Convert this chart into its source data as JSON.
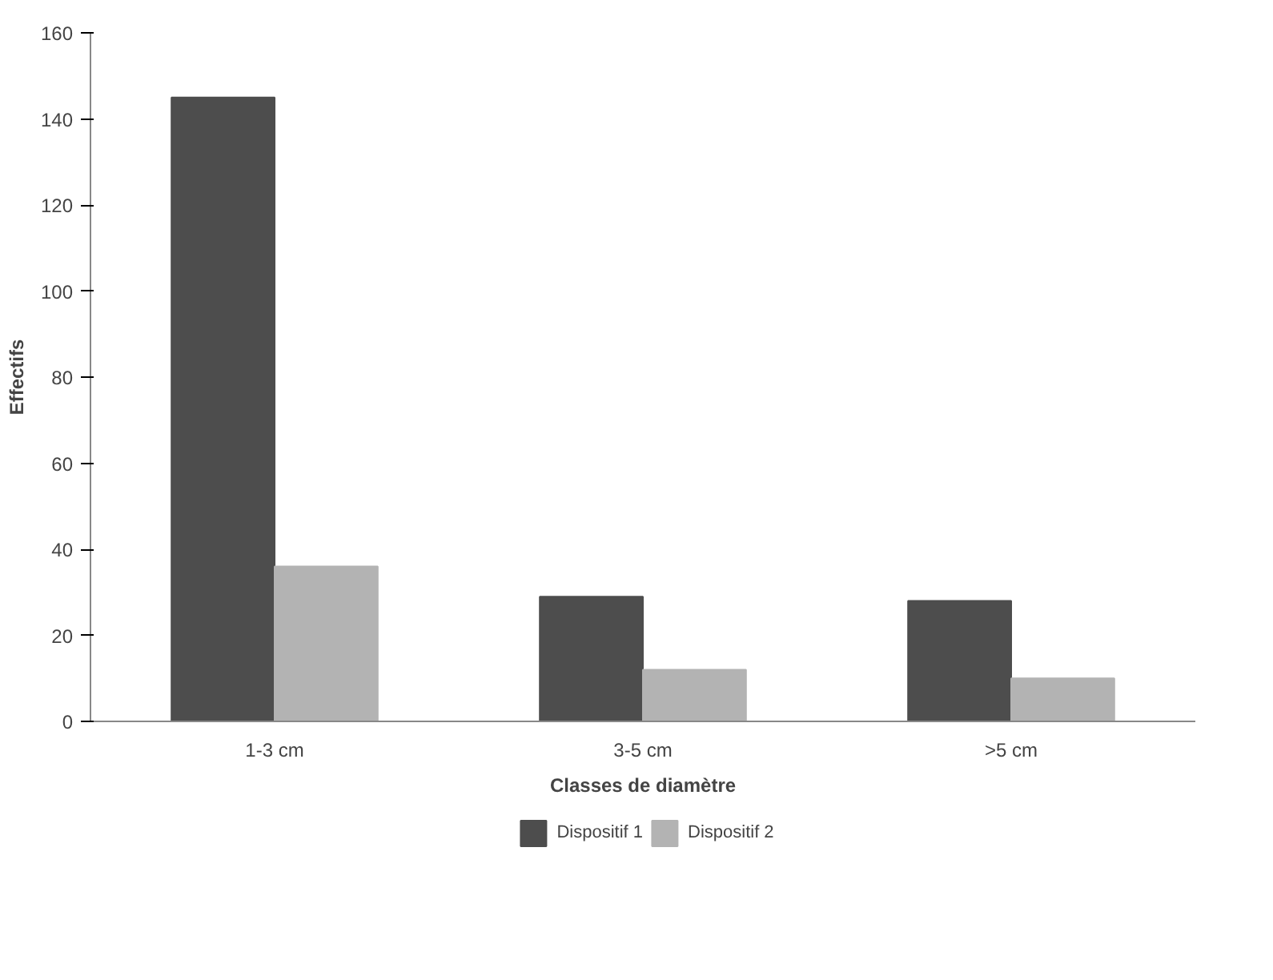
{
  "chart_data": {
    "type": "bar",
    "xlabel": "Classes de diamètre",
    "ylabel": "Effectifs",
    "categories": [
      "1-3 cm",
      "3-5 cm",
      ">5 cm"
    ],
    "series": [
      {
        "name": "Dispositif 1",
        "color": "#4d4d4d",
        "values": [
          145,
          29,
          28
        ]
      },
      {
        "name": "Dispositif 2",
        "color": "#b3b3b3",
        "values": [
          36,
          12,
          10
        ]
      }
    ],
    "ylim": [
      0,
      160
    ],
    "yticks": [
      0,
      20,
      40,
      60,
      80,
      100,
      120,
      140,
      160
    ],
    "grid": false,
    "legend": "bottom"
  }
}
